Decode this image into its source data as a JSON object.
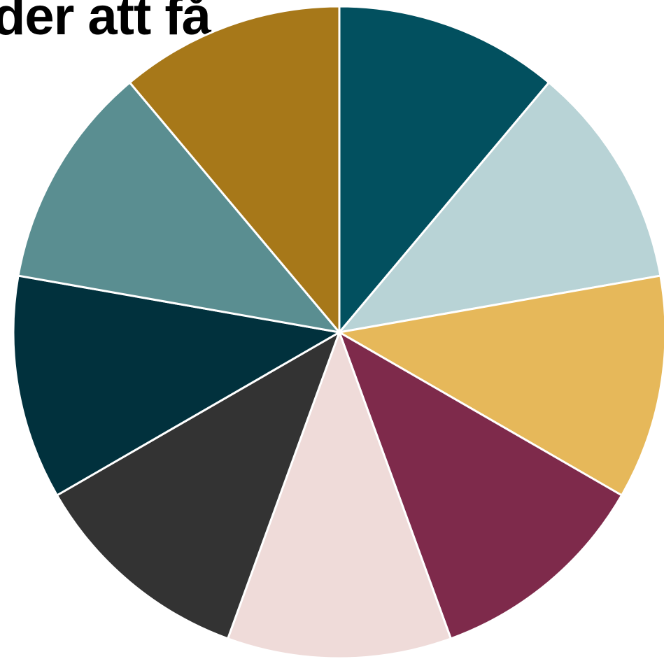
{
  "chart_data": {
    "type": "pie",
    "title": "der att få",
    "slices": [
      {
        "value": 1,
        "color": "#02505F"
      },
      {
        "value": 1,
        "color": "#B8D3D6"
      },
      {
        "value": 1,
        "color": "#E6B85A"
      },
      {
        "value": 1,
        "color": "#7E2A4B"
      },
      {
        "value": 1,
        "color": "#EFDBD9"
      },
      {
        "value": 1,
        "color": "#333333"
      },
      {
        "value": 1,
        "color": "#01313D"
      },
      {
        "value": 1,
        "color": "#5A8E91"
      },
      {
        "value": 1,
        "color": "#A77819"
      }
    ],
    "start_angle_deg": 0,
    "direction": "clockwise",
    "legend": "none"
  }
}
